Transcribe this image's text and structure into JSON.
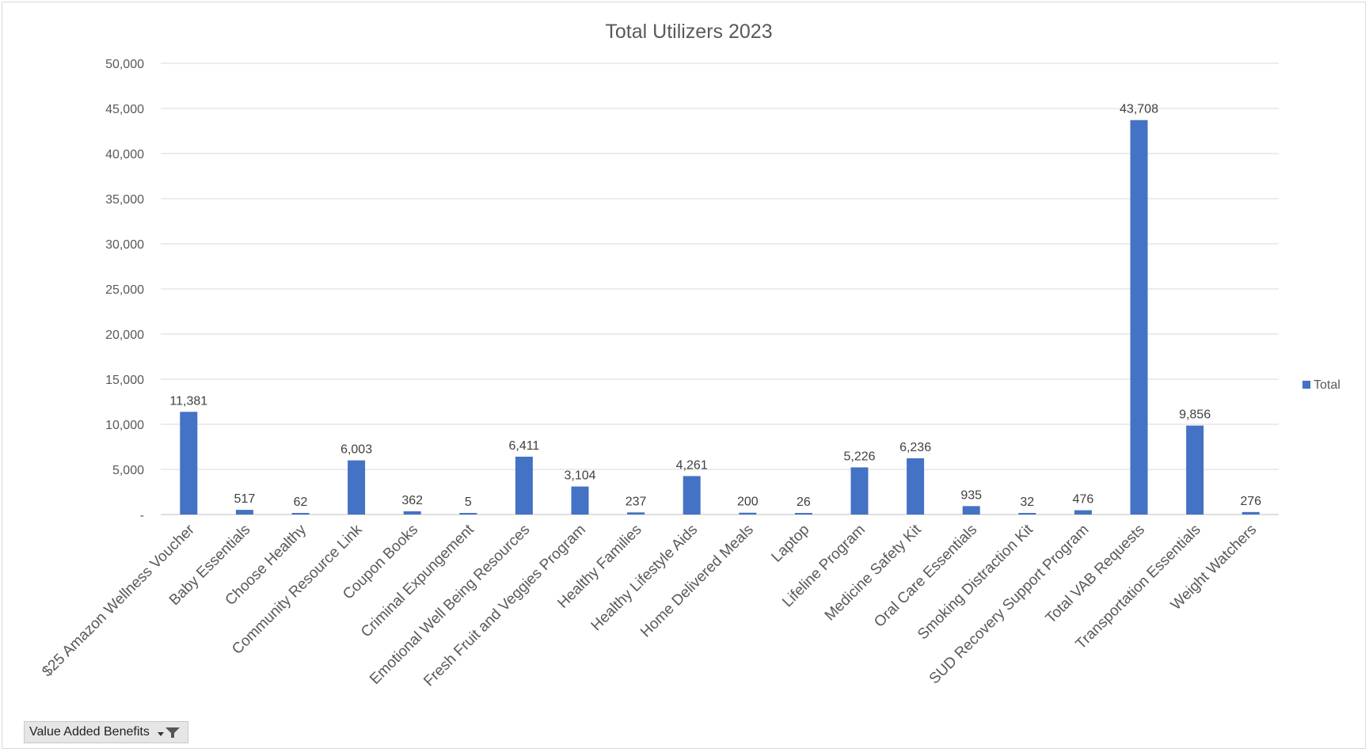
{
  "chart_data": {
    "type": "bar",
    "title": "Total Utilizers 2023",
    "categories": [
      "$25 Amazon Wellness Voucher",
      "Baby Essentials",
      "Choose Healthy",
      "Community Resource Link",
      "Coupon Books",
      "Criminal Expungement",
      "Emotional Well Being Resources",
      "Fresh Fruit and Veggies Program",
      "Healthy Families",
      "Healthy Lifestyle Aids",
      "Home Delivered Meals",
      "Laptop",
      "Lifeline Program",
      "Medicine Safety Kit",
      "Oral Care Essentials",
      "Smoking Distraction Kit",
      "SUD Recovery Support Program",
      "Total VAB Requests",
      "Transportation Essentials",
      "Weight Watchers"
    ],
    "series": [
      {
        "name": "Total",
        "values": [
          11381,
          517,
          62,
          6003,
          362,
          5,
          6411,
          3104,
          237,
          4261,
          200,
          26,
          5226,
          6236,
          935,
          32,
          476,
          43708,
          9856,
          276
        ],
        "data_labels": [
          "11,381",
          "517",
          "62",
          "6,003",
          "362",
          "5",
          "6,411",
          "3,104",
          "237",
          "4,261",
          "200",
          "26",
          "5,226",
          "6,236",
          "935",
          "32",
          "476",
          "43,708",
          "9,856",
          "276"
        ],
        "color": "#4472c4"
      }
    ],
    "y_ticks": [
      "-",
      "5,000",
      "10,000",
      "15,000",
      "20,000",
      "25,000",
      "30,000",
      "35,000",
      "40,000",
      "45,000",
      "50,000"
    ],
    "ylim": [
      0,
      50000
    ],
    "grid": true,
    "legend_position": "right",
    "xlabel": "",
    "ylabel": ""
  },
  "filter_button": {
    "label": "Value Added Benefits",
    "icon": "filter-dropdown-icon"
  }
}
